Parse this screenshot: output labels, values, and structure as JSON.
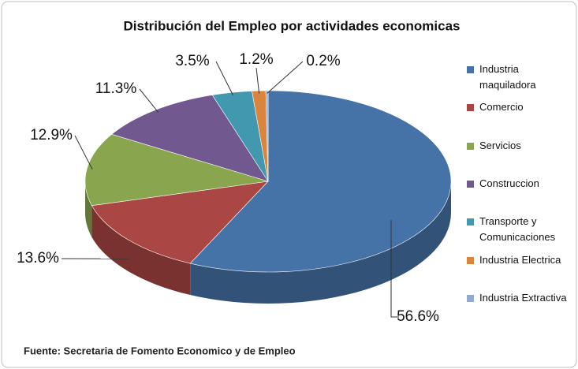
{
  "chart_data": {
    "type": "pie",
    "title": "Distribución del Empleo por actividades economicas",
    "categories": [
      "Industria maquiladora",
      "Comercio",
      "Servicios",
      "Construccion",
      "Transporte y Comunicaciones",
      "Industria Electrica",
      "Industria Extractiva"
    ],
    "values": [
      56.6,
      13.6,
      12.9,
      11.3,
      3.5,
      1.2,
      0.2
    ],
    "value_labels": [
      "56.6%",
      "13.6%",
      "12.9%",
      "11.3%",
      "3.5%",
      "1.2%",
      "0.2%"
    ],
    "colors": [
      "#4572a7",
      "#aa4643",
      "#89a54e",
      "#71588f",
      "#4198af",
      "#db843d",
      "#93a9cf"
    ],
    "legend": "right",
    "source": "Fuente: Secretaria de Fomento Economico y de Empleo"
  }
}
